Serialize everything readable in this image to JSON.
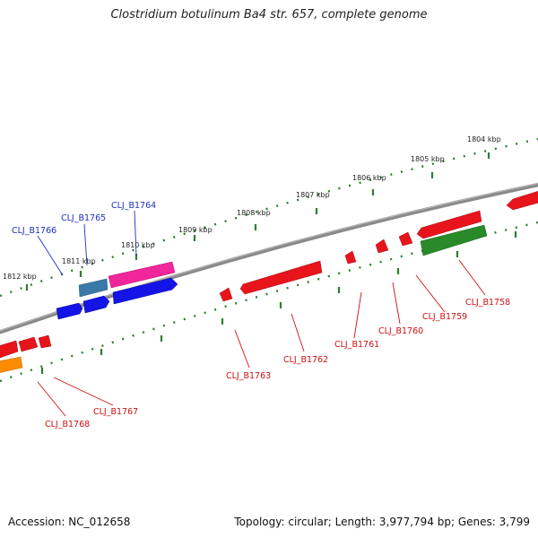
{
  "title": "Clostridium botulinum Ba4 str. 657, complete genome",
  "footer": {
    "accession": "Accession: NC_012658",
    "summary": "Topology: circular; Length: 3,977,794 bp; Genes: 3,799"
  },
  "colors": {
    "backbone": "#8a8a8a",
    "ruler": "#2e7d32",
    "label_blue": "#1f2fbf",
    "label_red": "#d01010",
    "gene_red": "#e8141c",
    "gene_blue": "#1414e6",
    "gene_steelblue": "#3a78a8",
    "gene_pink": "#f0269a",
    "gene_green": "#2a8a2a",
    "gene_orange": "#ff8c00"
  },
  "kbp_labels": [
    "1812 kbp",
    "1811 kbp",
    "1810 kbp",
    "1809 kbp",
    "1808 kbp",
    "1807 kbp",
    "1806 kbp",
    "1805 kbp",
    "1804 kbp"
  ],
  "gene_labels": [
    {
      "text": "CLJ_B1766",
      "color": "blue"
    },
    {
      "text": "CLJ_B1765",
      "color": "blue"
    },
    {
      "text": "CLJ_B1764",
      "color": "blue"
    },
    {
      "text": "CLJ_B1763",
      "color": "red"
    },
    {
      "text": "CLJ_B1762",
      "color": "red"
    },
    {
      "text": "CLJ_B1761",
      "color": "red"
    },
    {
      "text": "CLJ_B1760",
      "color": "red"
    },
    {
      "text": "CLJ_B1759",
      "color": "red"
    },
    {
      "text": "CLJ_B1758",
      "color": "red"
    },
    {
      "text": "CLJ_B1767",
      "color": "red"
    },
    {
      "text": "CLJ_B1768",
      "color": "red"
    }
  ]
}
